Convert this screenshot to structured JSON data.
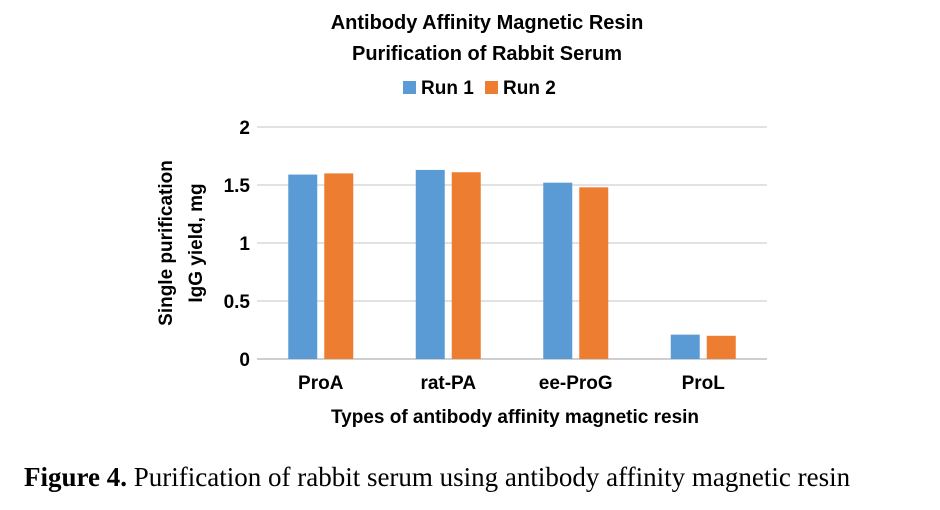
{
  "chart_data": {
    "type": "bar",
    "title_line1": "Antibody Affinity Magnetic Resin",
    "title_line2": "Purification of Rabbit Serum",
    "categories": [
      "ProA",
      "rat-PA",
      "ee-ProG",
      "ProL"
    ],
    "series": [
      {
        "name": "Run 1",
        "values": [
          1.59,
          1.63,
          1.52,
          0.21
        ]
      },
      {
        "name": "Run 2",
        "values": [
          1.6,
          1.61,
          1.48,
          0.2
        ]
      }
    ],
    "colors": [
      "#5b9bd5",
      "#ed7d31"
    ],
    "ylabel_line1": "Single purification",
    "ylabel_line2": "IgG yield, mg",
    "xlabel": "Types of antibody affinity magnetic resin",
    "ylim": [
      0,
      2
    ],
    "yticks": [
      "0",
      "0.5",
      "1",
      "1.5",
      "2"
    ],
    "legend_position": "top",
    "grid": true
  },
  "caption": {
    "label": "Figure 4.",
    "text": " Purification of rabbit serum using antibody affinity magnetic resin"
  }
}
